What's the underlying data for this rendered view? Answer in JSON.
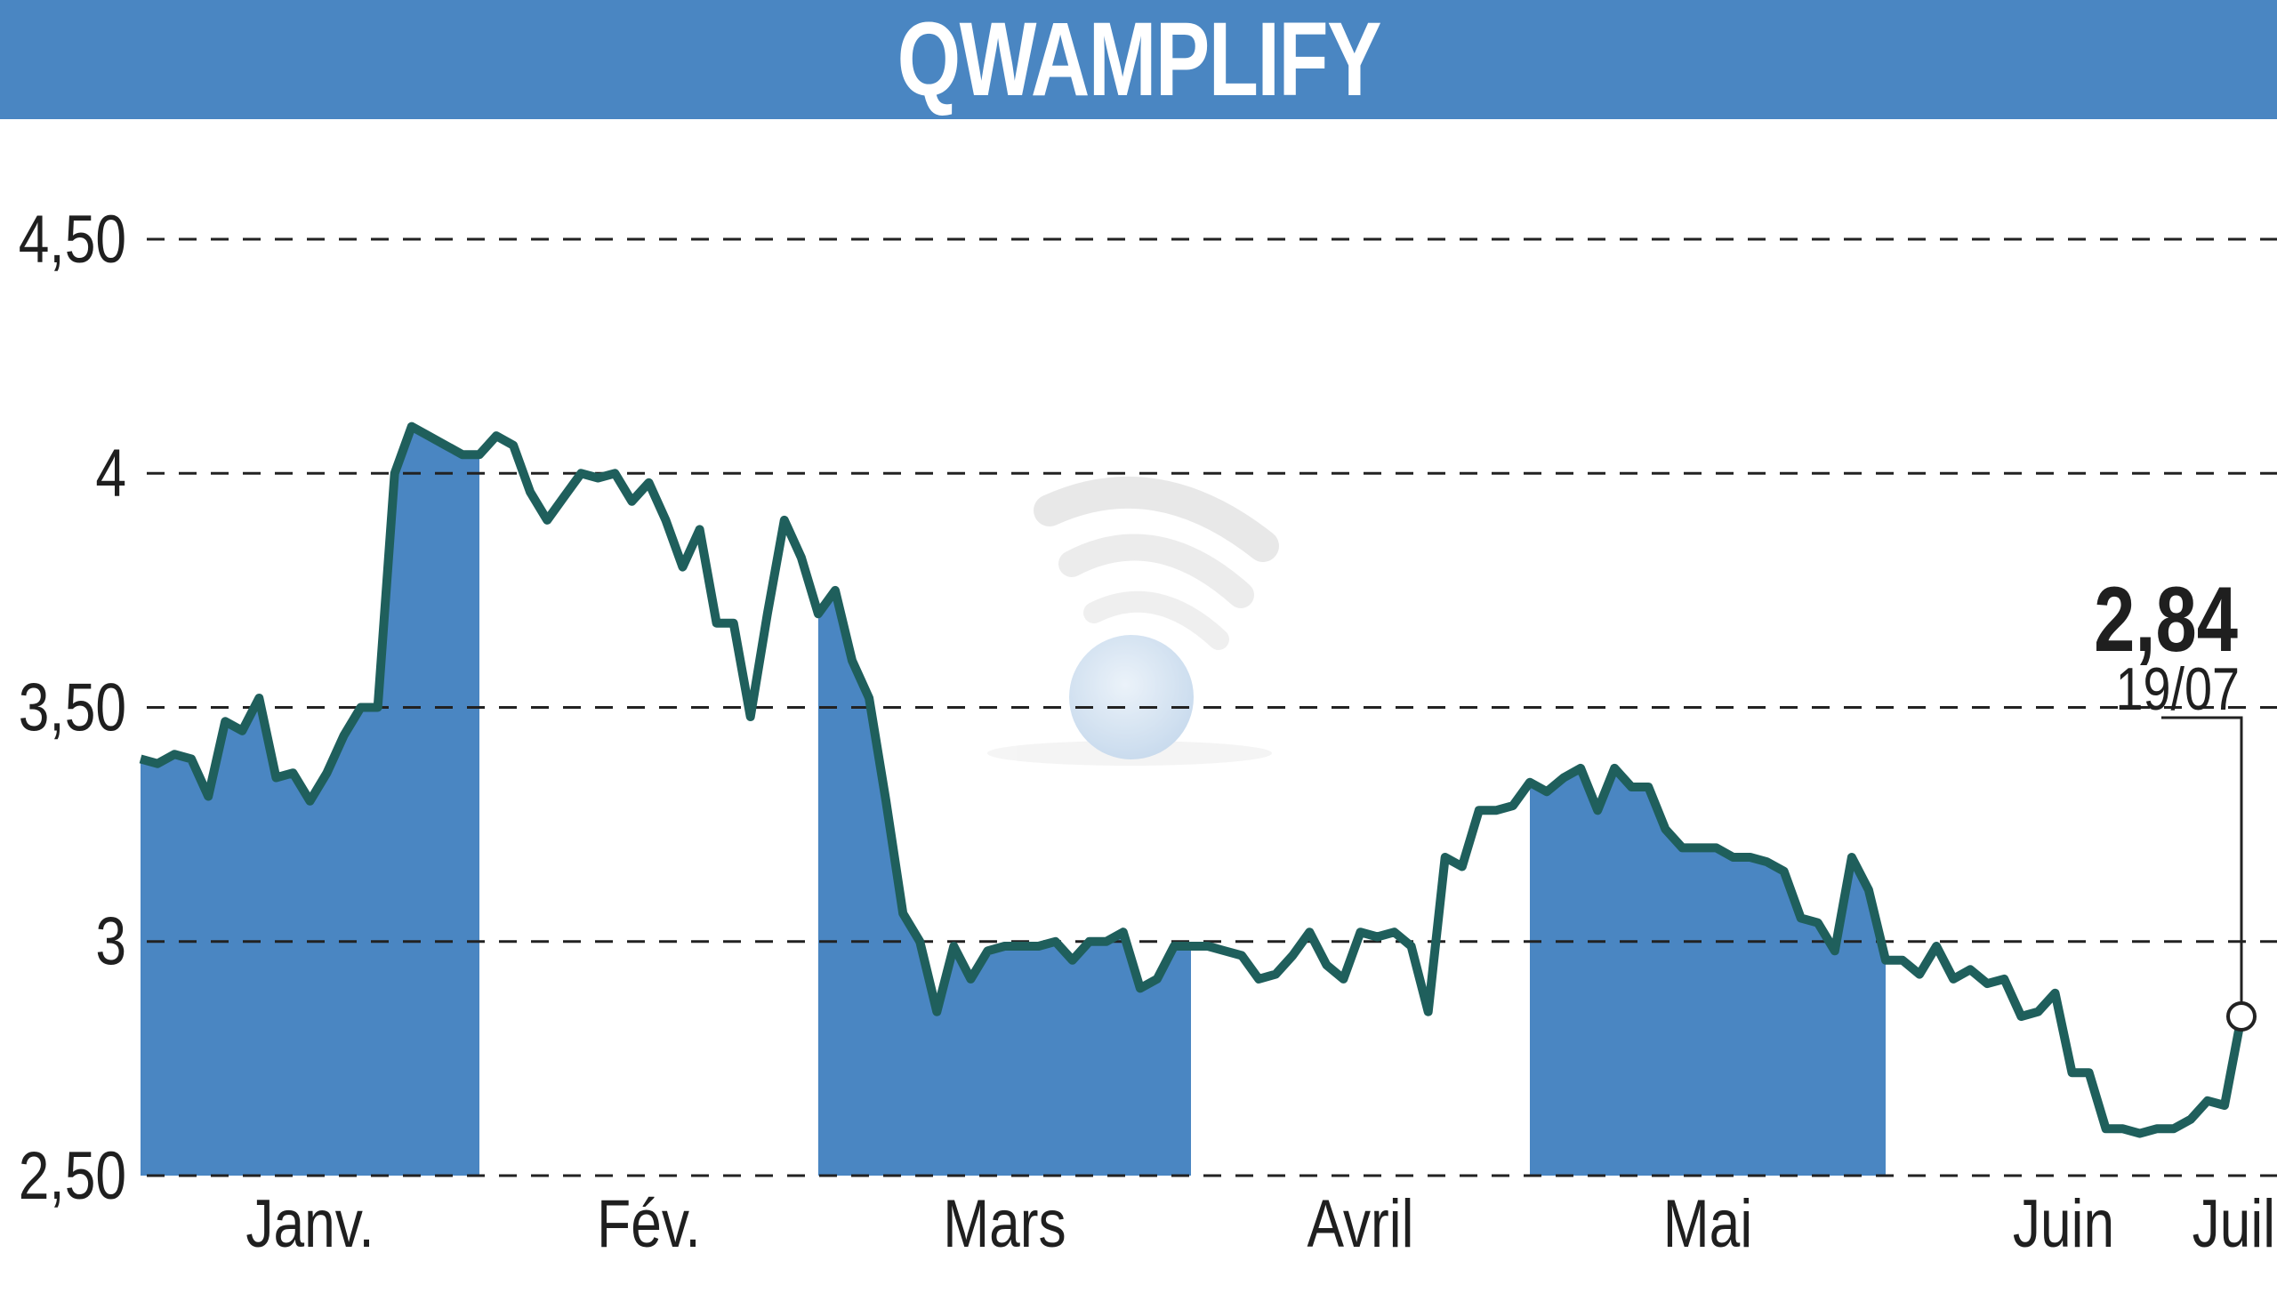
{
  "chart_data": {
    "type": "area",
    "title": "QWAMPLIFY",
    "xlabel": "",
    "ylabel": "",
    "ylim": [
      2.5,
      4.5
    ],
    "y_ticks": [
      {
        "value": 4.5,
        "label": "4,50"
      },
      {
        "value": 4.0,
        "label": "4"
      },
      {
        "value": 3.5,
        "label": "3,50"
      },
      {
        "value": 3.0,
        "label": "3"
      },
      {
        "value": 2.5,
        "label": "2,50"
      }
    ],
    "months": [
      {
        "label": "Janv.",
        "start": 0,
        "end": 20
      },
      {
        "label": "Fév.",
        "start": 20,
        "end": 40
      },
      {
        "label": "Mars",
        "start": 40,
        "end": 62
      },
      {
        "label": "Avril",
        "start": 62,
        "end": 82
      },
      {
        "label": "Mai",
        "start": 82,
        "end": 103
      },
      {
        "label": "Juin",
        "start": 103,
        "end": 124
      },
      {
        "label": "Juil.",
        "start": 124,
        "end": 137
      }
    ],
    "shaded_months": [
      "Janv.",
      "Mars",
      "Mai",
      "Juil."
    ],
    "series": [
      {
        "values": [
          3.39,
          3.38,
          3.4,
          3.39,
          3.31,
          3.47,
          3.45,
          3.52,
          3.35,
          3.36,
          3.3,
          3.36,
          3.44,
          3.5,
          3.5,
          4.0,
          4.1,
          4.08,
          4.06,
          4.04,
          4.04,
          4.08,
          4.06,
          3.96,
          3.9,
          3.95,
          4.0,
          3.99,
          4.0,
          3.94,
          3.98,
          3.9,
          3.8,
          3.88,
          3.68,
          3.68,
          3.48,
          3.7,
          3.9,
          3.82,
          3.7,
          3.75,
          3.6,
          3.52,
          3.3,
          3.06,
          3.0,
          2.85,
          2.99,
          2.92,
          2.98,
          2.99,
          2.99,
          2.99,
          3.0,
          2.96,
          3.0,
          3.0,
          3.02,
          2.9,
          2.92,
          2.99,
          2.99,
          2.99,
          2.98,
          2.97,
          2.92,
          2.93,
          2.97,
          3.02,
          2.95,
          2.92,
          3.02,
          3.01,
          3.02,
          2.99,
          2.85,
          3.18,
          3.16,
          3.28,
          3.28,
          3.29,
          3.34,
          3.32,
          3.35,
          3.37,
          3.28,
          3.37,
          3.33,
          3.33,
          3.24,
          3.2,
          3.2,
          3.2,
          3.18,
          3.18,
          3.17,
          3.15,
          3.05,
          3.04,
          2.98,
          3.18,
          3.11,
          2.96,
          2.96,
          2.93,
          2.99,
          2.92,
          2.94,
          2.91,
          2.92,
          2.84,
          2.85,
          2.89,
          2.72,
          2.72,
          2.6,
          2.6,
          2.59,
          2.6,
          2.6,
          2.62,
          2.66,
          2.65,
          2.84
        ]
      }
    ],
    "last_value": {
      "value": 2.84,
      "label": "2,84",
      "date": "19/07"
    }
  },
  "colors": {
    "header_bg": "#4a86c2",
    "area_fill": "#4a86c2",
    "line": "#1f5f5c",
    "grid": "#222222"
  },
  "logo_icon": "wifi-signal-globe-icon"
}
